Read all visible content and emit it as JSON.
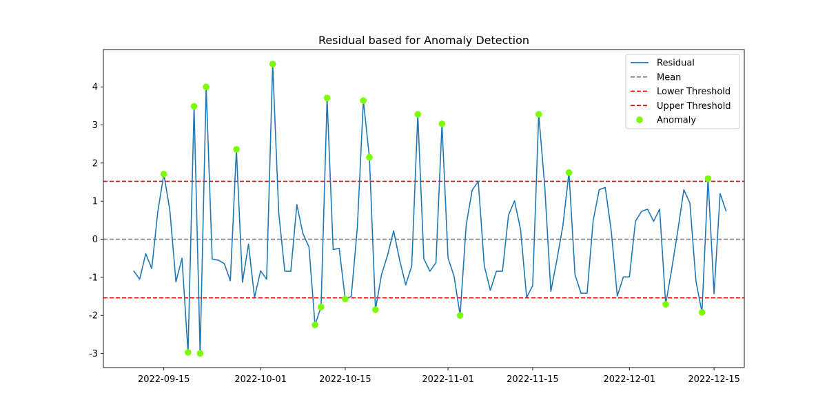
{
  "chart_data": {
    "type": "line",
    "title": "Residual based for Anomaly Detection",
    "xlabel": "",
    "ylabel": "",
    "x_start": "2022-09-10",
    "xlim": [
      "2022-09-05",
      "2022-12-20"
    ],
    "ylim": [
      -3.37,
      4.98
    ],
    "x_ticks": [
      "2022-09-15",
      "2022-10-01",
      "2022-10-15",
      "2022-11-01",
      "2022-11-15",
      "2022-12-01",
      "2022-12-15"
    ],
    "y_ticks": [
      -3,
      -2,
      -1,
      0,
      1,
      2,
      3,
      4
    ],
    "grid": false,
    "legend_placement": "top-right",
    "residual": {
      "name": "Residual",
      "color": "#1f77b4",
      "values": [
        -0.83,
        -1.05,
        -0.38,
        -0.77,
        0.72,
        1.71,
        0.75,
        -1.12,
        -0.5,
        -2.97,
        3.49,
        -3.0,
        4.0,
        -0.52,
        -0.55,
        -0.64,
        -1.09,
        2.36,
        -1.13,
        -0.13,
        -1.53,
        -0.83,
        -1.05,
        4.6,
        0.7,
        -0.84,
        -0.84,
        0.91,
        0.15,
        -0.2,
        -2.25,
        -1.78,
        3.71,
        -0.27,
        -0.24,
        -1.57,
        -1.5,
        0.3,
        3.64,
        2.15,
        -1.85,
        -0.93,
        -0.42,
        0.22,
        -0.55,
        -1.2,
        -0.7,
        3.28,
        -0.51,
        -0.84,
        -0.62,
        3.03,
        -0.49,
        -0.97,
        -2.0,
        0.37,
        1.29,
        1.52,
        -0.7,
        -1.34,
        -0.84,
        -0.84,
        0.63,
        1.01,
        0.25,
        -1.53,
        -1.22,
        3.28,
        1.38,
        -1.37,
        -0.55,
        0.36,
        1.75,
        -0.93,
        -1.42,
        -1.42,
        0.48,
        1.3,
        1.36,
        0.21,
        -1.49,
        -0.99,
        -0.99,
        0.47,
        0.73,
        0.79,
        0.47,
        0.79,
        -1.71,
        -0.78,
        0.22,
        1.3,
        0.95,
        -1.1,
        -1.92,
        1.59,
        -1.43,
        1.2,
        0.73
      ]
    },
    "mean": {
      "name": "Mean",
      "value": 0.0,
      "color": "#808080"
    },
    "lower_threshold": {
      "name": "Lower Threshold",
      "value": -1.54,
      "color": "#ff0000"
    },
    "upper_threshold": {
      "name": "Upper Threshold",
      "value": 1.52,
      "color": "#ff0000"
    },
    "anomaly": {
      "name": "Anomaly",
      "color": "#7cfc00",
      "points": [
        [
          "2022-09-15",
          1.71
        ],
        [
          "2022-09-19",
          -2.97
        ],
        [
          "2022-09-20",
          3.49
        ],
        [
          "2022-09-21",
          -3.0
        ],
        [
          "2022-09-22",
          4.0
        ],
        [
          "2022-09-27",
          2.36
        ],
        [
          "2022-10-03",
          4.6
        ],
        [
          "2022-10-10",
          -2.25
        ],
        [
          "2022-10-11",
          -1.78
        ],
        [
          "2022-10-12",
          3.71
        ],
        [
          "2022-10-15",
          -1.57
        ],
        [
          "2022-10-18",
          3.64
        ],
        [
          "2022-10-19",
          2.15
        ],
        [
          "2022-10-20",
          -1.85
        ],
        [
          "2022-10-27",
          3.28
        ],
        [
          "2022-10-31",
          3.03
        ],
        [
          "2022-11-03",
          -2.0
        ],
        [
          "2022-11-16",
          3.28
        ],
        [
          "2022-11-21",
          1.75
        ],
        [
          "2022-12-07",
          -1.71
        ],
        [
          "2022-12-13",
          -1.92
        ],
        [
          "2022-12-14",
          1.59
        ]
      ]
    }
  }
}
